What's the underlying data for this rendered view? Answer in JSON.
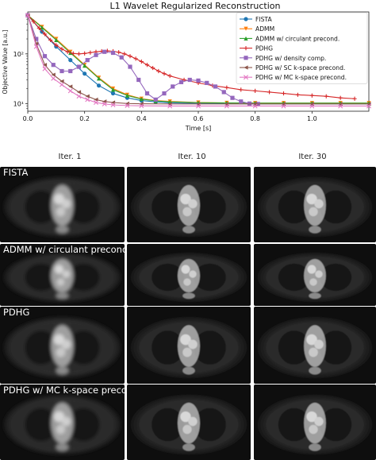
{
  "figure": {
    "column_titles": [
      "Iter. 1",
      "Iter. 10",
      "Iter. 30"
    ],
    "row_labels": [
      "FISTA",
      "ADMM w/ circulant precond.",
      "PDHG",
      "PDHG w/ MC k-space precond."
    ]
  },
  "chart_data": {
    "type": "line",
    "title": "L1 Wavelet Regularized Reconstruction",
    "xlabel": "Time [s]",
    "ylabel": "Objective Value [a.u.]",
    "xlim": [
      0,
      1.2
    ],
    "ylim_log": [
      7,
      700
    ],
    "yscale": "log",
    "grid": false,
    "legend_position": "upper right",
    "x_ticks": [
      "0.0",
      "0.2",
      "0.4",
      "0.6",
      "0.8",
      "1.0"
    ],
    "y_ticks": [
      "10¹",
      "10²"
    ],
    "series": [
      {
        "name": "FISTA",
        "color": "#1f77b4",
        "marker": "circle",
        "x": [
          0,
          0.05,
          0.1,
          0.15,
          0.2,
          0.25,
          0.3,
          0.35,
          0.4,
          0.45,
          0.5,
          0.6,
          0.7,
          0.8,
          0.9,
          1.0,
          1.1,
          1.2
        ],
        "y": [
          600,
          280,
          140,
          75,
          40,
          23,
          16,
          13,
          11.5,
          10.8,
          10.3,
          10.0,
          9.9,
          9.8,
          9.8,
          9.8,
          9.8,
          9.8
        ]
      },
      {
        "name": "ADMM",
        "color": "#ff7f0e",
        "marker": "triangle-down",
        "x": [
          0,
          0.05,
          0.1,
          0.15,
          0.2,
          0.25,
          0.3,
          0.35,
          0.4,
          0.45,
          0.5,
          0.6,
          0.7,
          0.8,
          0.9,
          1.0,
          1.1,
          1.2
        ],
        "y": [
          600,
          350,
          200,
          110,
          60,
          33,
          20,
          15,
          12.5,
          11.5,
          11,
          10.5,
          10.3,
          10.2,
          10.2,
          10.2,
          10.2,
          10.2
        ]
      },
      {
        "name": "ADMM w/ circulant precond.",
        "color": "#2ca02c",
        "marker": "triangle-up",
        "x": [
          0,
          0.05,
          0.1,
          0.15,
          0.2,
          0.25,
          0.3,
          0.35,
          0.4,
          0.45,
          0.5,
          0.6,
          0.7,
          0.8,
          0.9,
          1.0,
          1.1,
          1.2
        ],
        "y": [
          600,
          340,
          190,
          105,
          58,
          32,
          19,
          14.5,
          12.3,
          11.3,
          10.8,
          10.4,
          10.3,
          10.2,
          10.2,
          10.2,
          10.2,
          10.2
        ]
      },
      {
        "name": "PDHG",
        "color": "#d62728",
        "marker": "plus",
        "x": [
          0,
          0.02,
          0.04,
          0.06,
          0.08,
          0.1,
          0.12,
          0.14,
          0.16,
          0.18,
          0.2,
          0.22,
          0.24,
          0.26,
          0.28,
          0.3,
          0.32,
          0.34,
          0.36,
          0.38,
          0.4,
          0.42,
          0.44,
          0.46,
          0.48,
          0.5,
          0.55,
          0.6,
          0.65,
          0.7,
          0.75,
          0.8,
          0.85,
          0.9,
          0.95,
          1.0,
          1.05,
          1.1,
          1.15
        ],
        "y": [
          600,
          450,
          330,
          250,
          190,
          150,
          125,
          110,
          102,
          100,
          102,
          106,
          110,
          113,
          115,
          113,
          108,
          100,
          90,
          80,
          70,
          60,
          52,
          45,
          40,
          36,
          30,
          26,
          23,
          21,
          19,
          18,
          17,
          16,
          15,
          14.5,
          14,
          13,
          12.5
        ]
      },
      {
        "name": "PDHG w/ density comp.",
        "color": "#9467bd",
        "marker": "square",
        "x": [
          0,
          0.03,
          0.06,
          0.09,
          0.12,
          0.15,
          0.18,
          0.21,
          0.24,
          0.27,
          0.3,
          0.33,
          0.36,
          0.39,
          0.42,
          0.45,
          0.48,
          0.51,
          0.54,
          0.57,
          0.6,
          0.63,
          0.66,
          0.69,
          0.72,
          0.75,
          0.78,
          0.81
        ],
        "y": [
          600,
          200,
          90,
          60,
          45,
          45,
          55,
          75,
          95,
          110,
          105,
          85,
          55,
          30,
          16,
          12,
          16,
          22,
          27,
          30,
          29,
          26,
          22,
          17,
          13,
          11,
          10,
          9.8
        ]
      },
      {
        "name": "PDHG w/ SC k-space precond.",
        "color": "#8c564b",
        "marker": "triangle-left",
        "x": [
          0,
          0.03,
          0.06,
          0.09,
          0.12,
          0.15,
          0.18,
          0.21,
          0.24,
          0.27,
          0.3,
          0.35,
          0.4,
          0.5,
          0.6,
          0.7,
          0.8,
          0.9,
          1.0,
          1.1,
          1.2
        ],
        "y": [
          600,
          160,
          60,
          38,
          28,
          22,
          17,
          14,
          12,
          11,
          10.5,
          10,
          9.9,
          9.8,
          9.8,
          9.8,
          9.8,
          9.8,
          9.8,
          9.8,
          9.8
        ]
      },
      {
        "name": "PDHG w/ MC k-space precond.",
        "color": "#e377c2",
        "marker": "x",
        "x": [
          0,
          0.03,
          0.06,
          0.09,
          0.12,
          0.15,
          0.18,
          0.21,
          0.24,
          0.27,
          0.3,
          0.35,
          0.4,
          0.5,
          0.6,
          0.7,
          0.8,
          0.9,
          1.0,
          1.1,
          1.2
        ],
        "y": [
          600,
          140,
          50,
          32,
          24,
          18,
          14,
          12,
          10.5,
          9.8,
          9.4,
          9.1,
          9.0,
          8.9,
          8.9,
          8.9,
          8.9,
          8.9,
          8.9,
          8.9,
          8.9
        ]
      }
    ]
  }
}
